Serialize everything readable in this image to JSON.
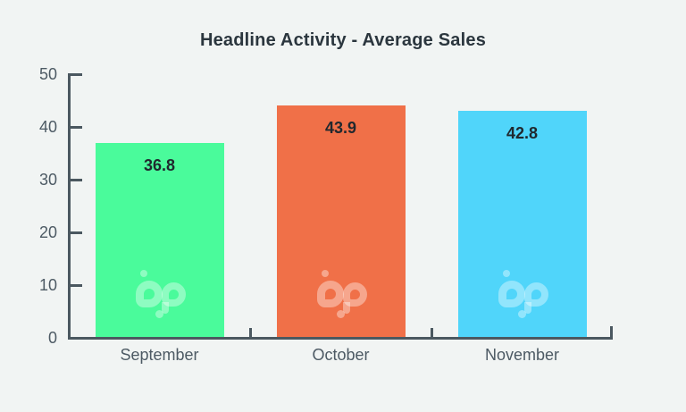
{
  "page": {
    "background": "#F1F4F3"
  },
  "chart_data": {
    "type": "bar",
    "title": "Headline Activity - Average Sales",
    "categories": [
      "September",
      "October",
      "November"
    ],
    "values": [
      36.8,
      43.9,
      42.8
    ],
    "value_labels": [
      "36.8",
      "43.9",
      "42.8"
    ],
    "bar_colors": [
      "#4AFB9B",
      "#F07048",
      "#50D5FA"
    ],
    "y_ticks": [
      0,
      10,
      20,
      30,
      40,
      50
    ],
    "ylim": [
      0,
      50
    ],
    "xlabel": "",
    "ylabel": "",
    "grid": false,
    "legend": false,
    "watermark_text": "bp",
    "colors": {
      "axis": "#4B5860",
      "tick_label": "#4D5A64",
      "title": "#2B363E",
      "value_label": "#20282E"
    }
  }
}
